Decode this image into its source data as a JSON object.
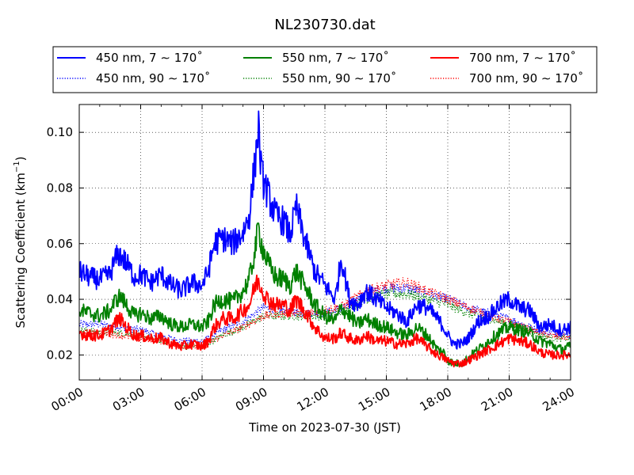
{
  "chart_data": {
    "type": "line",
    "title": "NL230730.dat",
    "xlabel": "Time on 2023-07-30 (JST)",
    "ylabel_main": "Scattering Coefficient (km",
    "ylabel_sup": "−1",
    "ylabel_close": ")",
    "x_range_hours": [
      0,
      24
    ],
    "ylim": [
      0.011,
      0.11
    ],
    "x_ticks": [
      "00:00",
      "03:00",
      "06:00",
      "09:00",
      "12:00",
      "15:00",
      "18:00",
      "21:00",
      "24:00"
    ],
    "y_ticks": [
      "0.02",
      "0.04",
      "0.06",
      "0.08",
      "0.10"
    ],
    "grid": true,
    "legend_position": "top, outside plot",
    "series": [
      {
        "name": "450 nm, 7 ∼ 170˚",
        "color": "#0000ff",
        "style": "solid",
        "x": [
          0,
          0.5,
          1,
          1.5,
          1.8,
          2,
          2.3,
          2.7,
          3,
          3.5,
          4,
          4.5,
          5,
          5.5,
          6,
          6.3,
          6.6,
          7,
          7.5,
          8,
          8.3,
          8.6,
          8.75,
          8.9,
          9.2,
          9.6,
          10,
          10.3,
          10.6,
          11,
          11.5,
          12,
          12.5,
          12.8,
          13.2,
          13.6,
          14,
          14.5,
          15,
          15.5,
          16,
          16.5,
          17,
          17.5,
          17.8,
          18,
          18.3,
          18.7,
          19,
          19.5,
          20,
          20.5,
          21,
          21.5,
          22,
          22.5,
          23,
          23.5,
          24
        ],
        "y": [
          0.05,
          0.048,
          0.047,
          0.049,
          0.055,
          0.056,
          0.053,
          0.048,
          0.049,
          0.046,
          0.049,
          0.045,
          0.043,
          0.046,
          0.045,
          0.05,
          0.06,
          0.062,
          0.06,
          0.064,
          0.07,
          0.09,
          0.102,
          0.085,
          0.078,
          0.07,
          0.068,
          0.063,
          0.073,
          0.062,
          0.05,
          0.045,
          0.04,
          0.055,
          0.04,
          0.038,
          0.043,
          0.04,
          0.037,
          0.035,
          0.032,
          0.038,
          0.037,
          0.033,
          0.03,
          0.027,
          0.024,
          0.024,
          0.026,
          0.032,
          0.034,
          0.038,
          0.04,
          0.037,
          0.036,
          0.03,
          0.031,
          0.029,
          0.03
        ]
      },
      {
        "name": "450 nm, 90 ∼ 170˚",
        "color": "#0000ff",
        "style": "dotted",
        "x": [
          0,
          1,
          2,
          3,
          4,
          5,
          6,
          7,
          8,
          9,
          10,
          11,
          12,
          13,
          14,
          15,
          16,
          17,
          18,
          19,
          20,
          21,
          22,
          23,
          24
        ],
        "y": [
          0.031,
          0.031,
          0.03,
          0.029,
          0.027,
          0.025,
          0.025,
          0.029,
          0.032,
          0.037,
          0.036,
          0.035,
          0.035,
          0.037,
          0.042,
          0.044,
          0.044,
          0.042,
          0.04,
          0.037,
          0.035,
          0.033,
          0.03,
          0.028,
          0.027
        ]
      },
      {
        "name": "550 nm, 7 ∼ 170˚",
        "color": "#008000",
        "style": "solid",
        "x": [
          0,
          0.5,
          1,
          1.5,
          1.8,
          2,
          2.3,
          2.7,
          3,
          3.5,
          4,
          4.5,
          5,
          5.5,
          6,
          6.3,
          6.6,
          7,
          7.5,
          8,
          8.3,
          8.6,
          8.75,
          8.9,
          9.2,
          9.6,
          10,
          10.3,
          10.6,
          11,
          11.5,
          12,
          12.5,
          12.8,
          13.2,
          13.6,
          14,
          14.5,
          15,
          15.5,
          16,
          16.5,
          17,
          17.5,
          17.8,
          18,
          18.3,
          18.7,
          19,
          19.5,
          20,
          20.5,
          21,
          21.5,
          22,
          22.5,
          23,
          23.5,
          24
        ],
        "y": [
          0.036,
          0.035,
          0.034,
          0.036,
          0.04,
          0.041,
          0.038,
          0.034,
          0.035,
          0.033,
          0.034,
          0.031,
          0.03,
          0.031,
          0.03,
          0.032,
          0.038,
          0.04,
          0.039,
          0.043,
          0.047,
          0.058,
          0.066,
          0.06,
          0.053,
          0.048,
          0.047,
          0.045,
          0.05,
          0.045,
          0.038,
          0.034,
          0.032,
          0.037,
          0.034,
          0.031,
          0.033,
          0.031,
          0.03,
          0.028,
          0.027,
          0.03,
          0.027,
          0.022,
          0.021,
          0.018,
          0.017,
          0.017,
          0.019,
          0.022,
          0.025,
          0.028,
          0.03,
          0.029,
          0.028,
          0.025,
          0.024,
          0.022,
          0.023
        ]
      },
      {
        "name": "550 nm, 90 ∼ 170˚",
        "color": "#008000",
        "style": "dotted",
        "x": [
          0,
          1,
          2,
          3,
          4,
          5,
          6,
          7,
          8,
          9,
          10,
          11,
          12,
          13,
          14,
          15,
          16,
          17,
          18,
          19,
          20,
          21,
          22,
          23,
          24
        ],
        "y": [
          0.029,
          0.028,
          0.028,
          0.027,
          0.025,
          0.023,
          0.023,
          0.027,
          0.03,
          0.034,
          0.034,
          0.034,
          0.034,
          0.036,
          0.04,
          0.042,
          0.042,
          0.04,
          0.038,
          0.035,
          0.033,
          0.031,
          0.028,
          0.026,
          0.026
        ]
      },
      {
        "name": "700 nm, 7 ∼ 170˚",
        "color": "#ff0000",
        "style": "solid",
        "x": [
          0,
          0.5,
          1,
          1.5,
          1.8,
          2,
          2.3,
          2.7,
          3,
          3.5,
          4,
          4.5,
          5,
          5.5,
          6,
          6.3,
          6.6,
          7,
          7.5,
          8,
          8.3,
          8.6,
          8.75,
          8.9,
          9.2,
          9.6,
          10,
          10.3,
          10.6,
          11,
          11.5,
          12,
          12.5,
          12.8,
          13.2,
          13.6,
          14,
          14.5,
          15,
          15.5,
          16,
          16.5,
          17,
          17.5,
          17.8,
          18,
          18.3,
          18.7,
          19,
          19.5,
          20,
          20.5,
          21,
          21.5,
          22,
          22.5,
          23,
          23.5,
          24
        ],
        "y": [
          0.028,
          0.027,
          0.027,
          0.029,
          0.032,
          0.033,
          0.03,
          0.027,
          0.027,
          0.026,
          0.026,
          0.024,
          0.023,
          0.024,
          0.023,
          0.025,
          0.03,
          0.033,
          0.033,
          0.036,
          0.038,
          0.045,
          0.047,
          0.044,
          0.04,
          0.038,
          0.038,
          0.036,
          0.04,
          0.036,
          0.03,
          0.026,
          0.026,
          0.028,
          0.026,
          0.025,
          0.027,
          0.025,
          0.025,
          0.024,
          0.024,
          0.026,
          0.023,
          0.02,
          0.019,
          0.018,
          0.017,
          0.017,
          0.018,
          0.02,
          0.022,
          0.024,
          0.026,
          0.025,
          0.024,
          0.021,
          0.02,
          0.02,
          0.02
        ]
      },
      {
        "name": "700 nm, 90 ∼ 170˚",
        "color": "#ff0000",
        "style": "dotted",
        "x": [
          0,
          1,
          2,
          3,
          4,
          5,
          6,
          7,
          8,
          9,
          10,
          11,
          12,
          13,
          14,
          15,
          16,
          17,
          18,
          19,
          20,
          21,
          22,
          23,
          24
        ],
        "y": [
          0.028,
          0.028,
          0.027,
          0.026,
          0.025,
          0.023,
          0.023,
          0.027,
          0.03,
          0.034,
          0.035,
          0.035,
          0.036,
          0.038,
          0.043,
          0.045,
          0.046,
          0.043,
          0.04,
          0.037,
          0.034,
          0.032,
          0.029,
          0.027,
          0.026
        ]
      }
    ]
  }
}
